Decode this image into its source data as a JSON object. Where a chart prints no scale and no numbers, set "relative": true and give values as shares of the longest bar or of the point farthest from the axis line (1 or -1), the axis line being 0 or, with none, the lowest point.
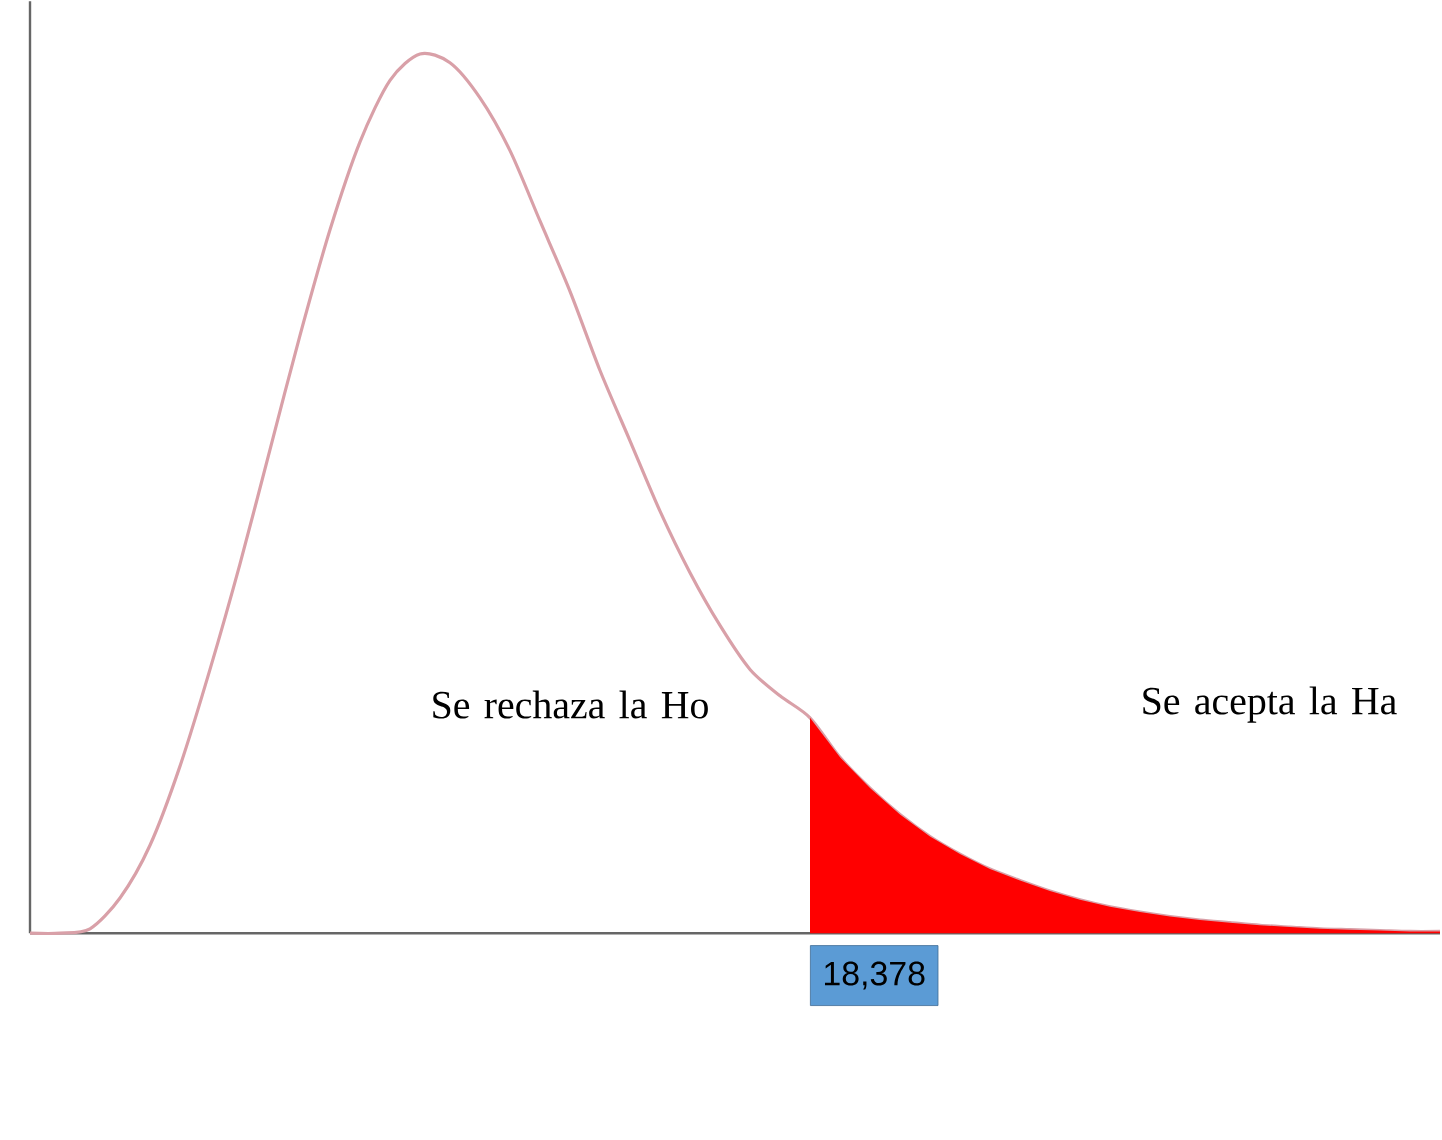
{
  "chart_data": {
    "type": "area",
    "relative": true,
    "categories": [
      null,
      null,
      null,
      null,
      null,
      null,
      null,
      null,
      null,
      null,
      null,
      null,
      null,
      null,
      null,
      null,
      null,
      null,
      null,
      null,
      null,
      null,
      null,
      null,
      null,
      null,
      null,
      null,
      null,
      null,
      null,
      null,
      null,
      null,
      null,
      null,
      null,
      null,
      null,
      null,
      null,
      null,
      null,
      null,
      null,
      null,
      null,
      null
    ],
    "series": [
      {
        "type": "line",
        "color": "#d9a0a8",
        "values": [
          0,
          0,
          0.005,
          0.04,
          0.1,
          0.19,
          0.3,
          0.42,
          0.55,
          0.68,
          0.8,
          0.9,
          0.97,
          1.0,
          0.99,
          0.95,
          0.89,
          0.81,
          0.73,
          0.64,
          0.56,
          0.48,
          0.41,
          0.35,
          0.3,
          0.27,
          0.245,
          0.2,
          0.165,
          0.135,
          0.11,
          0.09,
          0.073,
          0.06,
          0.048,
          0.038,
          0.03,
          0.024,
          0.019,
          0.015,
          0.012,
          0.009,
          0.007,
          0.005,
          0.004,
          0.003,
          0.002,
          0.002
        ]
      },
      {
        "type": "area",
        "color": "#ff0000",
        "values": [
          null,
          null,
          null,
          null,
          null,
          null,
          null,
          null,
          null,
          null,
          null,
          null,
          null,
          null,
          null,
          null,
          null,
          null,
          null,
          null,
          null,
          null,
          null,
          null,
          null,
          null,
          0.245,
          0.2,
          0.165,
          0.135,
          0.11,
          0.09,
          0.073,
          0.06,
          0.048,
          0.038,
          0.03,
          0.024,
          0.019,
          0.015,
          0.012,
          0.009,
          0.007,
          0.005,
          0.004,
          0.003,
          0.002,
          0.002
        ]
      }
    ],
    "annotations": [
      "Se rechaza la Ho",
      "Se acepta la Ha",
      "18,378"
    ]
  }
}
